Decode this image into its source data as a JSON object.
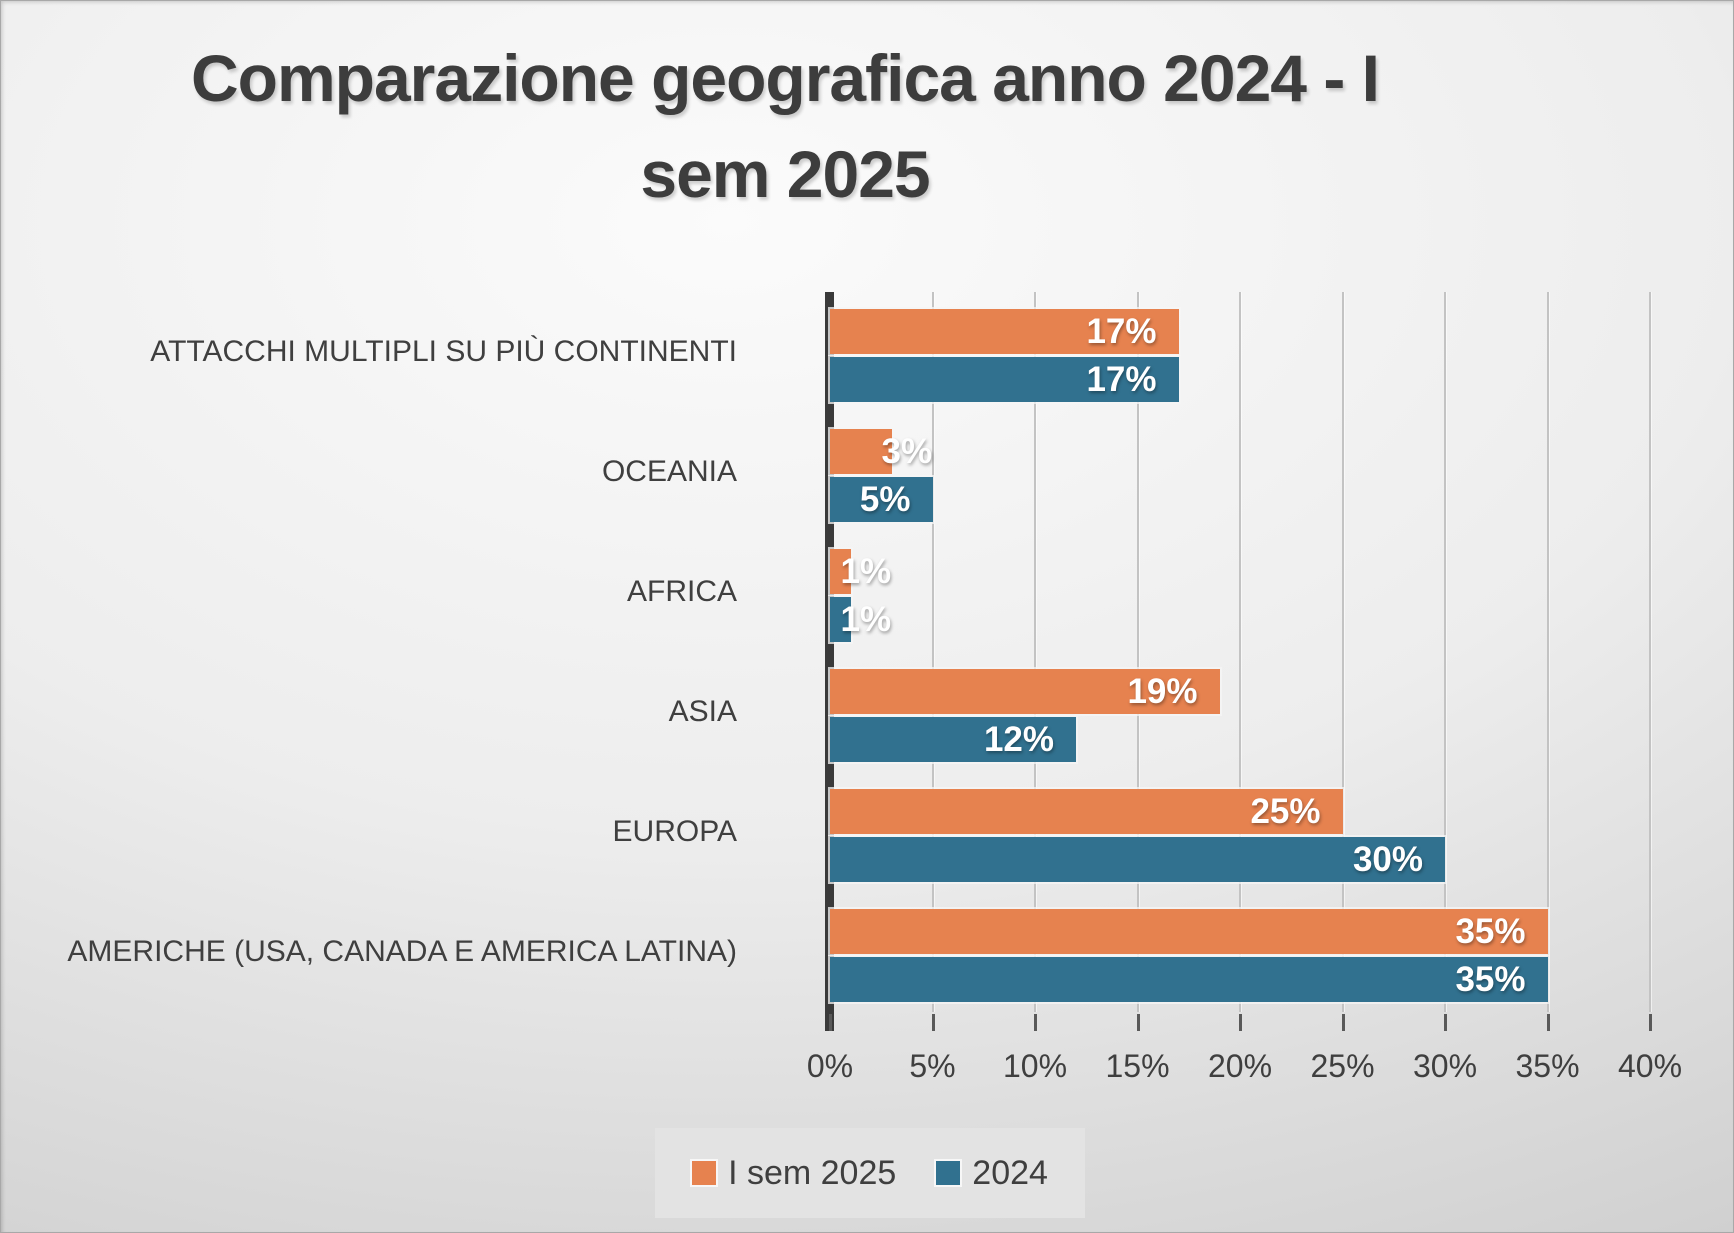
{
  "title": {
    "line1": "Comparazione geografica anno 2024 - I",
    "line2": "sem 2025"
  },
  "chart_data": {
    "type": "bar",
    "orientation": "horizontal",
    "title": "Comparazione geografica anno 2024 - I sem 2025",
    "categories": [
      "ATTACCHI MULTIPLI SU PIÙ CONTINENTI",
      "OCEANIA",
      "AFRICA",
      "ASIA",
      "EUROPA",
      "AMERICHE (USA, CANADA E AMERICA LATINA)"
    ],
    "series": [
      {
        "name": "I sem 2025",
        "color": "#E6824F",
        "values": [
          17,
          3,
          1,
          19,
          25,
          35
        ],
        "labels": [
          "17%",
          "3%",
          "1%",
          "19%",
          "25%",
          "35%"
        ]
      },
      {
        "name": "2024",
        "color": "#31718F",
        "values": [
          17,
          5,
          1,
          12,
          30,
          35
        ],
        "labels": [
          "17%",
          "5%",
          "1%",
          "12%",
          "30%",
          "35%"
        ]
      }
    ],
    "xlabel": "",
    "ylabel": "",
    "xlim": [
      0,
      40
    ],
    "x_ticks": [
      "0%",
      "5%",
      "10%",
      "15%",
      "20%",
      "25%",
      "30%",
      "35%",
      "40%"
    ],
    "grid": true,
    "legend_position": "bottom",
    "value_label_color": "#FFFFFF"
  },
  "legend": {
    "items": [
      {
        "label": "I sem 2025",
        "color": "#E6824F"
      },
      {
        "label": "2024",
        "color": "#31718F"
      }
    ]
  },
  "colors": {
    "series_1": "#E6824F",
    "series_2": "#31718F",
    "text": "#3F3F3F",
    "axis_line": "#3A3A3A",
    "gridline": "#C3C3C3",
    "legend_background": "#E3E3E3",
    "background_center": "#FBFBFB",
    "background_edge": "#C7C7C7",
    "value_label": "#FFFFFF"
  }
}
